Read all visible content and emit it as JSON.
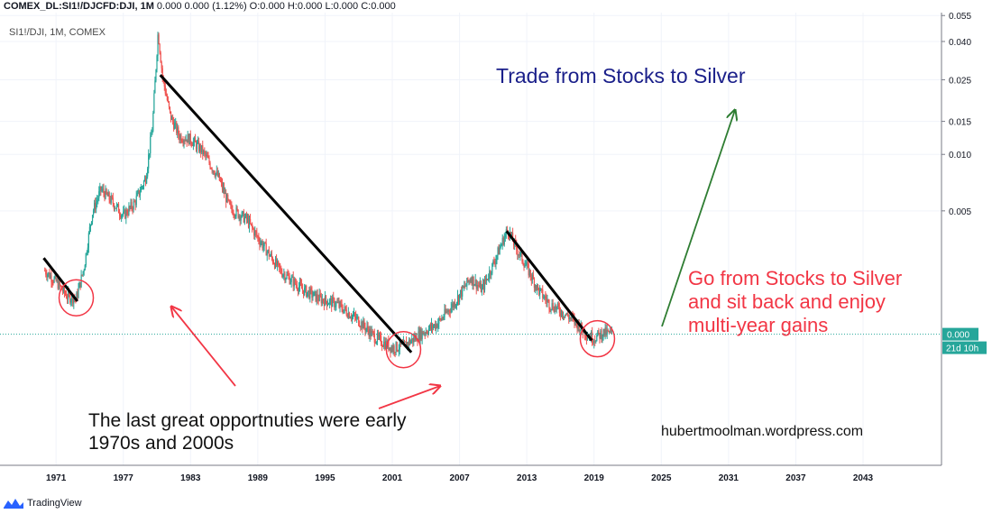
{
  "header": {
    "symbol": "COMEX_DL:SI1!/DJCFD:DJI, 1M",
    "change": "0.000 0.000 (1.12%)",
    "ohlc": "O:0.000 H:0.000 L:0.000 C:0.000"
  },
  "pane_label": "SI1!/DJI, 1M, COMEX",
  "footer": {
    "brand": "TradingView",
    "logo_icon": "tradingview-logo-icon"
  },
  "colors": {
    "up": "#26a69a",
    "down": "#ef5350",
    "trend": "#000000",
    "annotation_red": "#f23645",
    "annotation_green": "#2e7d32",
    "title_blue": "#1a1f8a",
    "price_label_bg": "#26a69a"
  },
  "chart_data": {
    "type": "candlestick",
    "title": "Trade from Stocks to Silver",
    "scale": "log",
    "xlabel": "",
    "ylabel": "",
    "x_ticks": [
      "1971",
      "1977",
      "1983",
      "1989",
      "1995",
      "2001",
      "2007",
      "2013",
      "2019",
      "2025",
      "2031",
      "2037",
      "2043"
    ],
    "y_ticks": [
      "0.055",
      "0.040",
      "0.025",
      "0.015",
      "0.010",
      "0.005"
    ],
    "xlim": [
      1966,
      2050
    ],
    "ylim": [
      0.00022,
      0.057
    ],
    "last_price": "0.000",
    "countdown": "21d 10h",
    "current_level": 0.0011,
    "grid": true,
    "series": [
      {
        "key_points": [
          [
            1970.0,
            0.0024
          ],
          [
            1971.0,
            0.0021
          ],
          [
            1972.0,
            0.00175
          ],
          [
            1972.8,
            0.0017
          ],
          [
            1973.5,
            0.0025
          ],
          [
            1974.2,
            0.0048
          ],
          [
            1975.0,
            0.0065
          ],
          [
            1976.0,
            0.0056
          ],
          [
            1977.0,
            0.0047
          ],
          [
            1978.0,
            0.0055
          ],
          [
            1979.0,
            0.0075
          ],
          [
            1979.6,
            0.014
          ],
          [
            1980.1,
            0.045
          ],
          [
            1980.5,
            0.026
          ],
          [
            1981.2,
            0.016
          ],
          [
            1982.0,
            0.0125
          ],
          [
            1983.0,
            0.012
          ],
          [
            1984.0,
            0.0105
          ],
          [
            1985.5,
            0.0075
          ],
          [
            1986.5,
            0.0052
          ],
          [
            1988.0,
            0.0045
          ],
          [
            1989.0,
            0.0036
          ],
          [
            1991.0,
            0.0024
          ],
          [
            1993.0,
            0.0019
          ],
          [
            1994.5,
            0.0017
          ],
          [
            1996.0,
            0.0016
          ],
          [
            1998.0,
            0.0013
          ],
          [
            1999.5,
            0.00105
          ],
          [
            2001.0,
            0.00093
          ],
          [
            2002.0,
            0.00095
          ],
          [
            2003.5,
            0.0011
          ],
          [
            2005.0,
            0.00125
          ],
          [
            2006.5,
            0.0016
          ],
          [
            2008.0,
            0.0022
          ],
          [
            2009.0,
            0.0019
          ],
          [
            2010.0,
            0.0026
          ],
          [
            2011.3,
            0.004
          ],
          [
            2012.0,
            0.0032
          ],
          [
            2013.0,
            0.0025
          ],
          [
            2014.0,
            0.0019
          ],
          [
            2015.0,
            0.0016
          ],
          [
            2016.5,
            0.0014
          ],
          [
            2017.5,
            0.00125
          ],
          [
            2018.5,
            0.00108
          ],
          [
            2019.0,
            0.00105
          ],
          [
            2019.8,
            0.00112
          ],
          [
            2020.6,
            0.0011
          ]
        ]
      }
    ],
    "trendlines": [
      {
        "from": [
          1969.9,
          0.0028
        ],
        "to": [
          1972.9,
          0.00165
        ]
      },
      {
        "from": [
          1980.3,
          0.0265
        ],
        "to": [
          2002.7,
          0.00088
        ]
      },
      {
        "from": [
          2011.2,
          0.0039
        ],
        "to": [
          2018.8,
          0.00102
        ]
      }
    ],
    "circles": [
      {
        "center": [
          1972.8,
          0.00172
        ]
      },
      {
        "center": [
          2002.0,
          0.00091
        ]
      },
      {
        "center": [
          2019.3,
          0.00104
        ]
      }
    ],
    "annotations": [
      {
        "id": "title",
        "text": "Trade from Stocks to Silver"
      },
      {
        "id": "go",
        "lines": [
          "Go from Stocks to Silver",
          "and sit back and enjoy",
          "multi-year gains"
        ]
      },
      {
        "id": "last",
        "lines": [
          "The last great opportnuties were early",
          "1970s and 2000s"
        ]
      },
      {
        "id": "site",
        "text": "hubertmoolman.wordpress.com"
      }
    ]
  }
}
